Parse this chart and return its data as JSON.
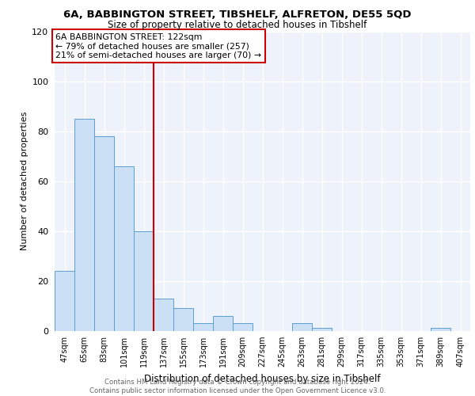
{
  "title_line1": "6A, BABBINGTON STREET, TIBSHELF, ALFRETON, DE55 5QD",
  "title_line2": "Size of property relative to detached houses in Tibshelf",
  "xlabel": "Distribution of detached houses by size in Tibshelf",
  "ylabel": "Number of detached properties",
  "categories": [
    "47sqm",
    "65sqm",
    "83sqm",
    "101sqm",
    "119sqm",
    "137sqm",
    "155sqm",
    "173sqm",
    "191sqm",
    "209sqm",
    "227sqm",
    "245sqm",
    "263sqm",
    "281sqm",
    "299sqm",
    "317sqm",
    "335sqm",
    "353sqm",
    "371sqm",
    "389sqm",
    "407sqm"
  ],
  "values": [
    24,
    85,
    78,
    66,
    40,
    13,
    9,
    3,
    6,
    3,
    0,
    0,
    3,
    1,
    0,
    0,
    0,
    0,
    0,
    1,
    0
  ],
  "bar_color": "#cce0f5",
  "bar_edge_color": "#5a9fd4",
  "vline_x_idx": 4.5,
  "vline_color": "#cc0000",
  "annotation_line1": "6A BABBINGTON STREET: 122sqm",
  "annotation_line2": "← 79% of detached houses are smaller (257)",
  "annotation_line3": "21% of semi-detached houses are larger (70) →",
  "annotation_box_color": "white",
  "annotation_box_edge": "#cc0000",
  "footer_text": "Contains HM Land Registry data © Crown copyright and database right 2024.\nContains public sector information licensed under the Open Government Licence v3.0.",
  "ylim": [
    0,
    120
  ],
  "yticks": [
    0,
    20,
    40,
    60,
    80,
    100,
    120
  ],
  "background_color": "#eef2fb",
  "grid_color": "white",
  "title_fontsize": 9.5,
  "subtitle_fontsize": 8.5
}
